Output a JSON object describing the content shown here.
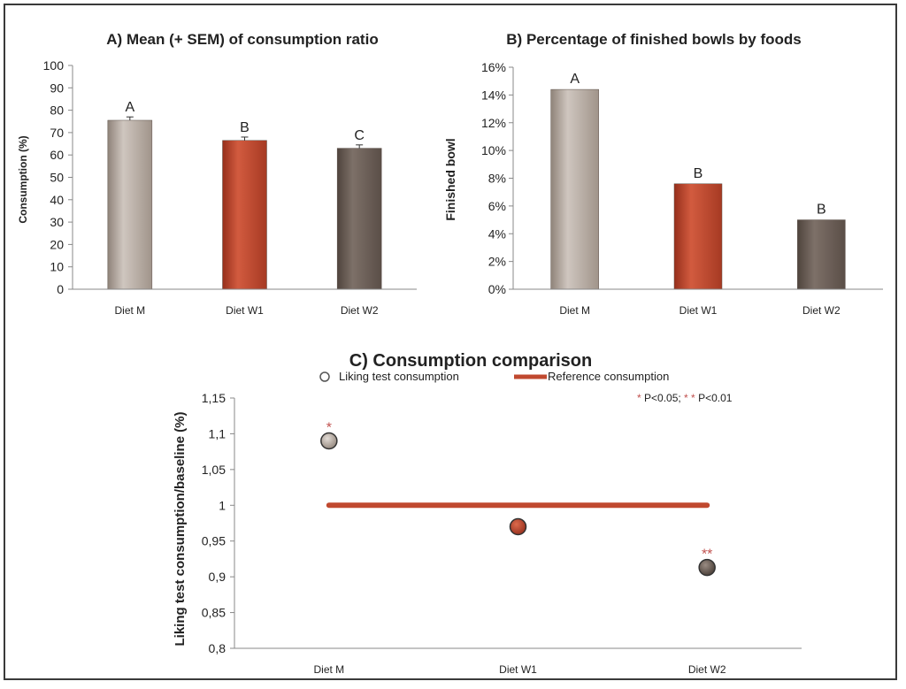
{
  "chart_data": [
    {
      "id": "A",
      "type": "bar",
      "title": "A) Mean (+ SEM) of consumption  ratio",
      "ylabel": "Consumption (%)",
      "xlabel": "",
      "categories": [
        "Diet M",
        "Diet W1",
        "Diet W2"
      ],
      "values": [
        75.5,
        66.5,
        63
      ],
      "errors": [
        1.5,
        1.5,
        1.5
      ],
      "value_labels": [
        "A",
        "B",
        "C"
      ],
      "ylim": [
        0,
        100
      ],
      "yticks": [
        0,
        10,
        20,
        30,
        40,
        50,
        60,
        70,
        80,
        90,
        100
      ],
      "ytick_labels": [
        "0",
        "10",
        "20",
        "30",
        "40",
        "50",
        "60",
        "70",
        "80",
        "90",
        "100"
      ],
      "colors": [
        "#b9ada3",
        "#c0492f",
        "#6d6058"
      ]
    },
    {
      "id": "B",
      "type": "bar",
      "title": "B) Percentage of finished bowls by foods",
      "ylabel": "Finished bowl",
      "xlabel": "",
      "categories": [
        "Diet M",
        "Diet W1",
        "Diet W2"
      ],
      "values": [
        0.144,
        0.076,
        0.05
      ],
      "value_labels": [
        "A",
        "B",
        "B"
      ],
      "ylim": [
        0,
        0.16
      ],
      "yticks": [
        0,
        0.02,
        0.04,
        0.06,
        0.08,
        0.1,
        0.12,
        0.14,
        0.16
      ],
      "ytick_labels": [
        "0%",
        "2%",
        "4%",
        "6%",
        "8%",
        "10%",
        "12%",
        "14%",
        "16%"
      ],
      "colors": [
        "#b9ada3",
        "#c0492f",
        "#6d6058"
      ]
    },
    {
      "id": "C",
      "type": "scatter",
      "title": "C) Consumption comparison",
      "ylabel": "Liking test consumption/baseline (%)",
      "xlabel": "",
      "categories": [
        "Diet M",
        "Diet W1",
        "Diet W2"
      ],
      "values": [
        1.09,
        0.97,
        0.913
      ],
      "markers": [
        "*",
        "",
        "**"
      ],
      "reference": 1.0,
      "ylim": [
        0.8,
        1.15
      ],
      "yticks": [
        0.8,
        0.85,
        0.9,
        0.95,
        1.0,
        1.05,
        1.1,
        1.15
      ],
      "ytick_labels": [
        "0,8",
        "0,85",
        "0,9",
        "0,95",
        "1",
        "1,05",
        "1,1",
        "1,15"
      ],
      "colors": [
        "#b9ada3",
        "#c0492f",
        "#6d6058"
      ],
      "line_color": "#c0492f",
      "legend": {
        "series_label": "Liking test consumption",
        "reference_label": "Reference consumption"
      },
      "significance": {
        "star1": "*",
        "text1": " P<0.05; ",
        "star2": "* *",
        "text2": " P<0.01"
      }
    }
  ]
}
